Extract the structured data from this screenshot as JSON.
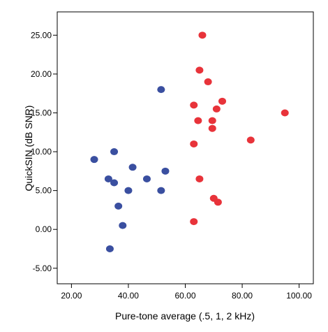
{
  "chart_data": {
    "type": "scatter",
    "title": "",
    "xlabel": "Pure-tone average (.5, 1, 2 kHz)",
    "ylabel": "QuickSIN (dB SNR)",
    "xlim": [
      15,
      105
    ],
    "ylim": [
      -7,
      28
    ],
    "x_ticks": [
      20,
      40,
      60,
      80,
      100
    ],
    "x_tick_labels": [
      "20.00",
      "40.00",
      "60.00",
      "80.00",
      "100.00"
    ],
    "y_ticks": [
      -5,
      0,
      5,
      10,
      15,
      20,
      25
    ],
    "y_tick_labels": [
      "-5.00",
      "0.00",
      "5.00",
      "10.00",
      "15.00",
      "20.00",
      "25.00"
    ],
    "grid": false,
    "legend": "none",
    "series": [
      {
        "color": "#3a4fa0",
        "points": [
          {
            "x": 28.0,
            "y": 9.0
          },
          {
            "x": 33.0,
            "y": 6.5
          },
          {
            "x": 33.5,
            "y": -2.5
          },
          {
            "x": 35.0,
            "y": 10.0
          },
          {
            "x": 35.0,
            "y": 6.0
          },
          {
            "x": 36.5,
            "y": 3.0
          },
          {
            "x": 38.0,
            "y": 0.5
          },
          {
            "x": 40.0,
            "y": 5.0
          },
          {
            "x": 41.5,
            "y": 8.0
          },
          {
            "x": 46.5,
            "y": 6.5
          },
          {
            "x": 51.5,
            "y": 5.0
          },
          {
            "x": 51.5,
            "y": 18.0
          },
          {
            "x": 53.0,
            "y": 7.5
          }
        ]
      },
      {
        "color": "#e8333a",
        "points": [
          {
            "x": 63.0,
            "y": 1.0
          },
          {
            "x": 63.0,
            "y": 11.0
          },
          {
            "x": 63.0,
            "y": 16.0
          },
          {
            "x": 64.5,
            "y": 14.0
          },
          {
            "x": 65.0,
            "y": 20.5
          },
          {
            "x": 65.0,
            "y": 6.5
          },
          {
            "x": 66.0,
            "y": 25.0
          },
          {
            "x": 68.0,
            "y": 19.0
          },
          {
            "x": 69.5,
            "y": 14.0
          },
          {
            "x": 69.5,
            "y": 13.0
          },
          {
            "x": 70.0,
            "y": 4.0
          },
          {
            "x": 71.0,
            "y": 15.5
          },
          {
            "x": 71.5,
            "y": 3.5
          },
          {
            "x": 73.0,
            "y": 16.5
          },
          {
            "x": 83.0,
            "y": 11.5
          },
          {
            "x": 95.0,
            "y": 15.0
          }
        ]
      }
    ]
  }
}
